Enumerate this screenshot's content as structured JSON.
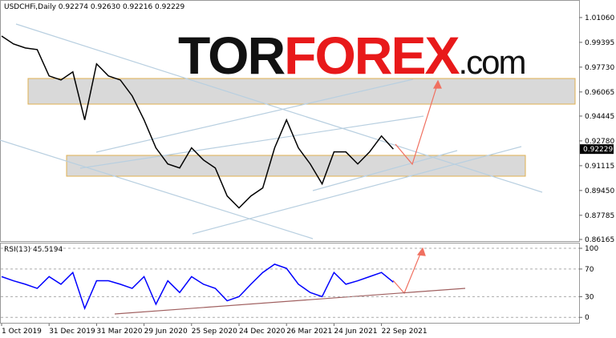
{
  "logo": {
    "part1": "TOR",
    "part2": "FOREX",
    "part3": ".com"
  },
  "chart_data": [
    {
      "type": "line",
      "title": "USDCHFi,Daily 0.92274 0.92630 0.92216 0.92229",
      "series": [
        {
          "color": "#000000",
          "values": [
            0.9982,
            0.9929,
            0.9902,
            0.9891,
            0.9714,
            0.9687,
            0.9741,
            0.9419,
            0.9795,
            0.9714,
            0.9687,
            0.958,
            0.9419,
            0.9231,
            0.9123,
            0.9096,
            0.9231,
            0.915,
            0.9096,
            0.8908,
            0.8828,
            0.8908,
            0.8962,
            0.9231,
            0.9419,
            0.9231,
            0.9123,
            0.8989,
            0.9204,
            0.9204,
            0.9123,
            0.9204,
            0.9311,
            0.9223
          ]
        }
      ],
      "current_price": 0.92229,
      "ylim": [
        0.86,
        1.0213
      ],
      "yticks": [
        {
          "value": 1.0106,
          "label": "1.01060"
        },
        0.99395,
        {
          "value": 0.9773,
          "label": "0.97730"
        },
        0.96065,
        0.94445,
        {
          "value": 0.9278,
          "label": "0.92780"
        },
        0.91115,
        {
          "value": 0.8945,
          "label": "0.89450"
        },
        0.87785,
        0.86165
      ]
    },
    {
      "type": "line",
      "title": "RSI(13) 45.5194",
      "categories": [
        "1 Oct 2019",
        null,
        null,
        null,
        "31 Dec 2019",
        null,
        null,
        null,
        "31 Mar 2020",
        null,
        null,
        null,
        "29 Jun 2020",
        null,
        null,
        null,
        "25 Sep 2020",
        null,
        null,
        null,
        "24 Dec 2020",
        null,
        null,
        null,
        "26 Mar 2021",
        null,
        null,
        null,
        "24 Jun 2021",
        null,
        null,
        null,
        "22 Sep 2021",
        null
      ],
      "series": [
        {
          "color": "#0000ff",
          "values": [
            59,
            53,
            48,
            42,
            59,
            48,
            65,
            13,
            53,
            53,
            48,
            42,
            59,
            19,
            53,
            36,
            59,
            48,
            42,
            24,
            30,
            48,
            65,
            77,
            71,
            48,
            36,
            30,
            65,
            48,
            53,
            59,
            65,
            51
          ]
        }
      ],
      "ylim": [
        -9,
        107
      ],
      "yticks": [
        100,
        70,
        30,
        0
      ],
      "grid": true
    }
  ]
}
